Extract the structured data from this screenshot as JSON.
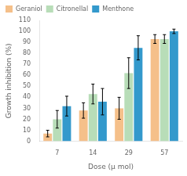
{
  "chart_data": {
    "type": "bar",
    "categories": [
      "7",
      "14",
      "29",
      "57"
    ],
    "series": [
      {
        "name": "Geraniol",
        "color": "#F5C08A",
        "values": [
          7,
          28,
          30,
          93
        ],
        "errors": [
          3,
          7,
          10,
          4
        ]
      },
      {
        "name": "Citronellal",
        "color": "#B8DDB8",
        "values": [
          20,
          43,
          62,
          93
        ],
        "errors": [
          8,
          9,
          14,
          4
        ]
      },
      {
        "name": "Menthone",
        "color": "#3399CC",
        "values": [
          32,
          36,
          85,
          100
        ],
        "errors": [
          9,
          12,
          11,
          2
        ]
      }
    ],
    "xlabel": "Dose (μ mol)",
    "ylabel": "Growth inhibition (%)",
    "ylim": [
      0,
      110
    ],
    "yticks": [
      0,
      10,
      20,
      30,
      40,
      50,
      60,
      70,
      80,
      90,
      100,
      110
    ],
    "grid": false,
    "legend": "upper left"
  }
}
